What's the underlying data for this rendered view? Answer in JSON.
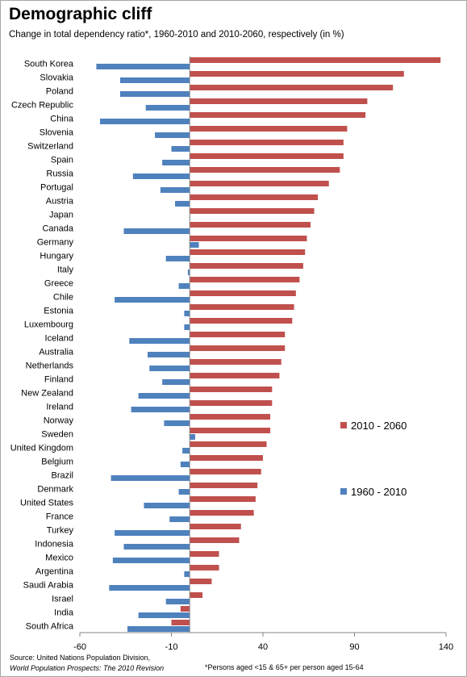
{
  "header": {
    "title": "Demographic cliff",
    "subtitle": "Change in total dependency  ratio*, 1960-2010 and 2010-2060, respectively (in %)"
  },
  "footer": {
    "source_line1": "Source: United Nations Population Division,",
    "source_line2": "World Population Prospects: The 2010 Revision",
    "footnote": "*Persons aged <15 & 65+ per person aged 15-64"
  },
  "colors": {
    "series_2010_2060": "#c0504d",
    "series_1960_2010": "#4f81bd",
    "axis": "#868686"
  },
  "chart_data": {
    "type": "bar",
    "orientation": "horizontal",
    "categories": [
      "South Korea",
      "Slovakia",
      "Poland",
      "Czech Republic",
      "China",
      "Slovenia",
      "Switzerland",
      "Spain",
      "Russia",
      "Portugal",
      "Austria",
      "Japan",
      "Canada",
      "Germany",
      "Hungary",
      "Italy",
      "Greece",
      "Chile",
      "Estonia",
      "Luxembourg",
      "Iceland",
      "Australia",
      "Netherlands",
      "Finland",
      "New Zealand",
      "Ireland",
      "Norway",
      "Sweden",
      "United Kingdom",
      "Belgium",
      "Brazil",
      "Denmark",
      "United States",
      "France",
      "Turkey",
      "Indonesia",
      "Mexico",
      "Argentina",
      "Saudi Arabia",
      "Israel",
      "India",
      "South Africa"
    ],
    "series": [
      {
        "name": "2010 - 2060",
        "values": [
          137,
          117,
          111,
          97,
          96,
          86,
          84,
          84,
          82,
          76,
          70,
          68,
          66,
          64,
          63,
          62,
          60,
          58,
          57,
          56,
          52,
          52,
          50,
          49,
          45,
          45,
          44,
          44,
          42,
          40,
          39,
          37,
          36,
          35,
          28,
          27,
          16,
          16,
          12,
          7,
          -5,
          -10
        ]
      },
      {
        "name": "1960 - 2010",
        "values": [
          -51,
          -38,
          -38,
          -24,
          -49,
          -19,
          -10,
          -15,
          -31,
          -16,
          -8,
          0,
          -36,
          5,
          -13,
          -1,
          -6,
          -41,
          -3,
          -3,
          -33,
          -23,
          -22,
          -15,
          -28,
          -32,
          -14,
          3,
          -4,
          -5,
          -43,
          -6,
          -25,
          -11,
          -41,
          -36,
          -42,
          -3,
          -44,
          -13,
          -28,
          -34
        ]
      }
    ],
    "x_ticks": [
      "-60",
      "-10",
      "40",
      "90",
      "140"
    ],
    "xlim": [
      -60,
      140
    ],
    "legend_position": "right",
    "grid": false
  }
}
